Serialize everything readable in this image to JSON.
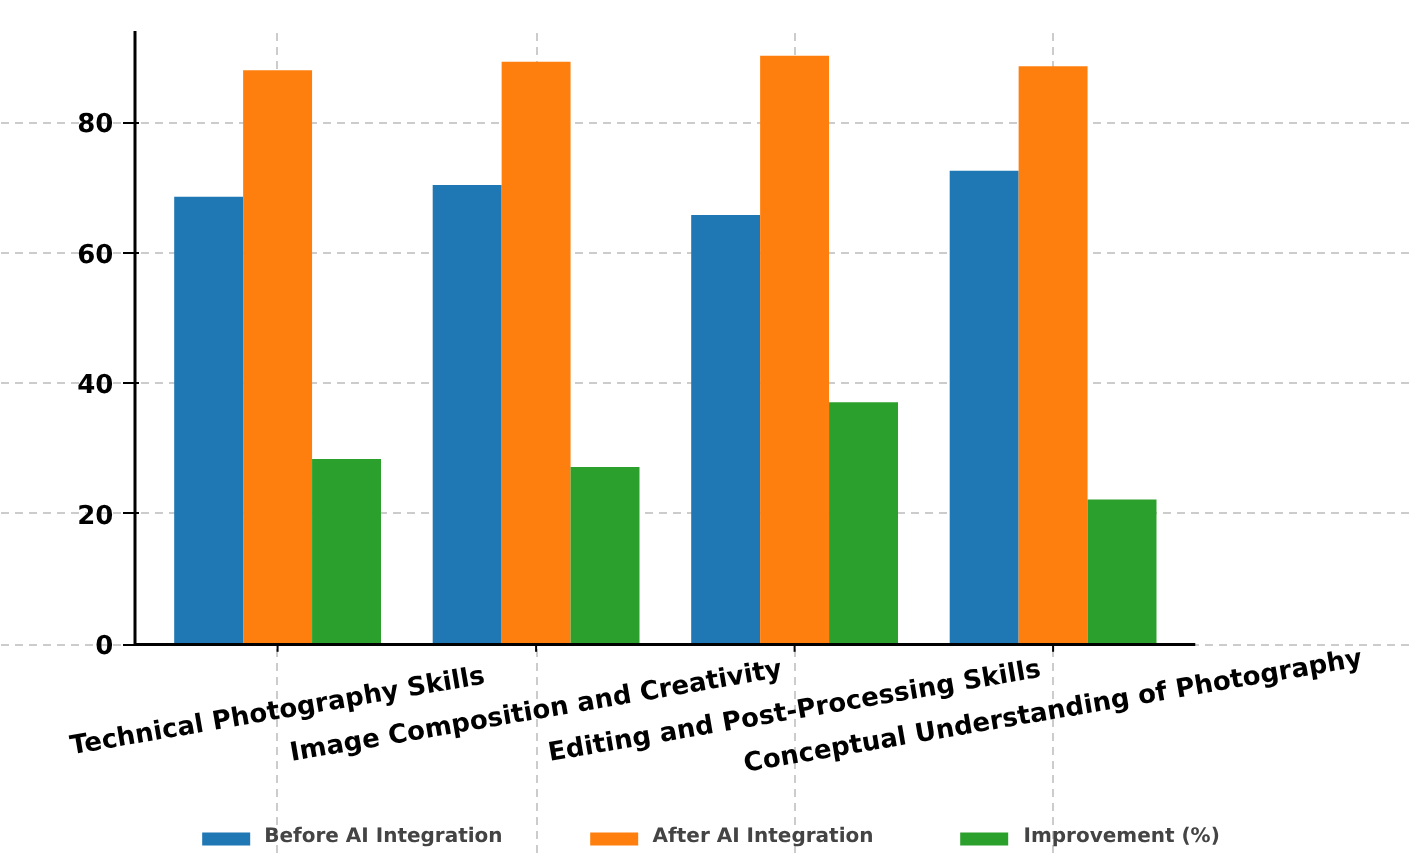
{
  "chart_data": {
    "type": "bar",
    "categories": [
      "Technical Photography Skills",
      "Image Composition and Creativity",
      "Editing and Post-Processing Skills",
      "Conceptual Understanding of Photography"
    ],
    "series": [
      {
        "name": "Before AI Integration",
        "color": "#1f77b4",
        "values": [
          68.6,
          70.4,
          65.8,
          72.6
        ]
      },
      {
        "name": "After AI Integration",
        "color": "#ff7f0e",
        "values": [
          88.0,
          89.3,
          90.2,
          88.6
        ]
      },
      {
        "name": "Improvement (%)",
        "color": "#2ca02c",
        "values": [
          28.4,
          27.2,
          37.1,
          22.2
        ]
      }
    ],
    "ylim": [
      0,
      94
    ],
    "yticks": [
      0,
      20,
      40,
      60,
      80
    ],
    "grid": true,
    "legend": "bottom"
  }
}
